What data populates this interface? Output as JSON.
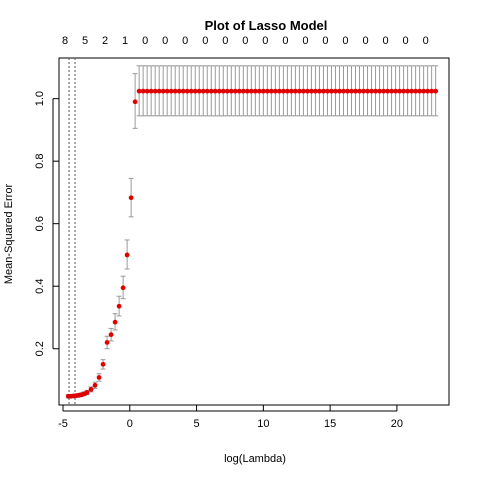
{
  "chart_data": {
    "type": "scatter",
    "title": "Plot of Lasso Model",
    "xlabel": "log(Lambda)",
    "ylabel": "Mean-Squared Error",
    "xlim": [
      -5.3,
      23.9
    ],
    "ylim": [
      0.02,
      1.13
    ],
    "x_ticks": [
      -5,
      0,
      5,
      10,
      15,
      20
    ],
    "y_ticks": [
      0.2,
      0.4,
      0.6,
      0.8,
      1.0
    ],
    "x_tick_labels": [
      "-5",
      "0",
      "5",
      "10",
      "15",
      "20"
    ],
    "y_tick_labels": [
      "0.2",
      "0.4",
      "0.6",
      "0.8",
      "1.0"
    ],
    "top_axis": {
      "labels": [
        "8",
        "5",
        "2",
        "1",
        "0",
        "0",
        "0",
        "0",
        "0",
        "0",
        "0",
        "0",
        "0",
        "0",
        "0",
        "0",
        "0",
        "0",
        "0"
      ],
      "x": [
        -4.85,
        -3.35,
        -1.85,
        -0.35,
        1.15,
        2.65,
        4.15,
        5.65,
        7.15,
        8.65,
        10.15,
        11.65,
        13.15,
        14.65,
        16.15,
        17.65,
        19.15,
        20.65,
        22.15
      ]
    },
    "vertical_lines": [
      -4.55,
      -4.1
    ],
    "grid": false,
    "points": [
      {
        "x": -4.6,
        "y": 0.048,
        "lo": 0.043,
        "hi": 0.053
      },
      {
        "x": -4.4,
        "y": 0.048,
        "lo": 0.043,
        "hi": 0.053
      },
      {
        "x": -4.2,
        "y": 0.049,
        "lo": 0.044,
        "hi": 0.054
      },
      {
        "x": -4.0,
        "y": 0.05,
        "lo": 0.045,
        "hi": 0.055
      },
      {
        "x": -3.8,
        "y": 0.051,
        "lo": 0.046,
        "hi": 0.057
      },
      {
        "x": -3.6,
        "y": 0.053,
        "lo": 0.047,
        "hi": 0.059
      },
      {
        "x": -3.4,
        "y": 0.056,
        "lo": 0.05,
        "hi": 0.062
      },
      {
        "x": -3.2,
        "y": 0.06,
        "lo": 0.053,
        "hi": 0.067
      },
      {
        "x": -2.9,
        "y": 0.07,
        "lo": 0.062,
        "hi": 0.078
      },
      {
        "x": -2.6,
        "y": 0.083,
        "lo": 0.073,
        "hi": 0.093
      },
      {
        "x": -2.3,
        "y": 0.108,
        "lo": 0.096,
        "hi": 0.12
      },
      {
        "x": -2.0,
        "y": 0.15,
        "lo": 0.135,
        "hi": 0.165
      },
      {
        "x": -1.7,
        "y": 0.22,
        "lo": 0.2,
        "hi": 0.24
      },
      {
        "x": -1.4,
        "y": 0.245,
        "lo": 0.225,
        "hi": 0.265
      },
      {
        "x": -1.1,
        "y": 0.285,
        "lo": 0.26,
        "hi": 0.312
      },
      {
        "x": -0.8,
        "y": 0.336,
        "lo": 0.305,
        "hi": 0.368
      },
      {
        "x": -0.5,
        "y": 0.395,
        "lo": 0.36,
        "hi": 0.432
      },
      {
        "x": -0.2,
        "y": 0.5,
        "lo": 0.455,
        "hi": 0.548
      },
      {
        "x": 0.1,
        "y": 0.683,
        "lo": 0.622,
        "hi": 0.745
      },
      {
        "x": 0.4,
        "y": 0.99,
        "lo": 0.905,
        "hi": 1.08
      },
      {
        "x": 0.7,
        "y": 1.024,
        "lo": 0.945,
        "hi": 1.105
      }
    ],
    "plateau": {
      "x_start": 1.0,
      "x_end": 23.0,
      "step": 0.3,
      "y": 1.024,
      "lo": 0.945,
      "hi": 1.105
    }
  },
  "colors": {
    "points": "#e00000",
    "error_bars": "#9a9a9a",
    "axis": "#000000"
  }
}
